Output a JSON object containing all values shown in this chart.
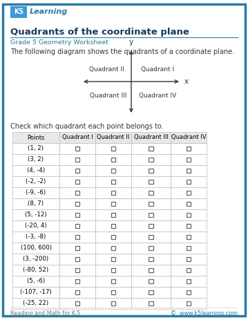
{
  "title": "Quadrants of the coordinate plane",
  "subtitle": "Grade 5 Geometry Worksheet",
  "instruction1": "The following diagram shows the quadrants of a coordinate plane.",
  "instruction2": "Check which quadrant each point belongs to.",
  "table_headers": [
    "Points",
    "Quadrant I",
    "Quadrant II",
    "Quadrant III",
    "Quadrant IV"
  ],
  "points": [
    "(1, 2)",
    "(3, 2)",
    "(4, -4)",
    "(-2, -2)",
    "(-9, -6)",
    "(8, 7)",
    "(5, -12)",
    "(-20, 4)",
    "(-3, -8)",
    "(100, 600)",
    "(3, -200)",
    "(-80, 52)",
    "(5, -6)",
    "(-107, -17)",
    "(-25, 22)"
  ],
  "footer_left": "Reading and Math for K-5",
  "footer_right": "©  www.k5learning.com",
  "border_color": "#2a7ba0",
  "title_color": "#1a3a5c",
  "subtitle_color": "#2a7ba0",
  "bg_color": "#ffffff",
  "table_line_color": "#bbbbbb",
  "text_color": "#333333",
  "footer_color": "#777777",
  "logo_box_color": "#2a7ba0",
  "axis_color": "#333333"
}
